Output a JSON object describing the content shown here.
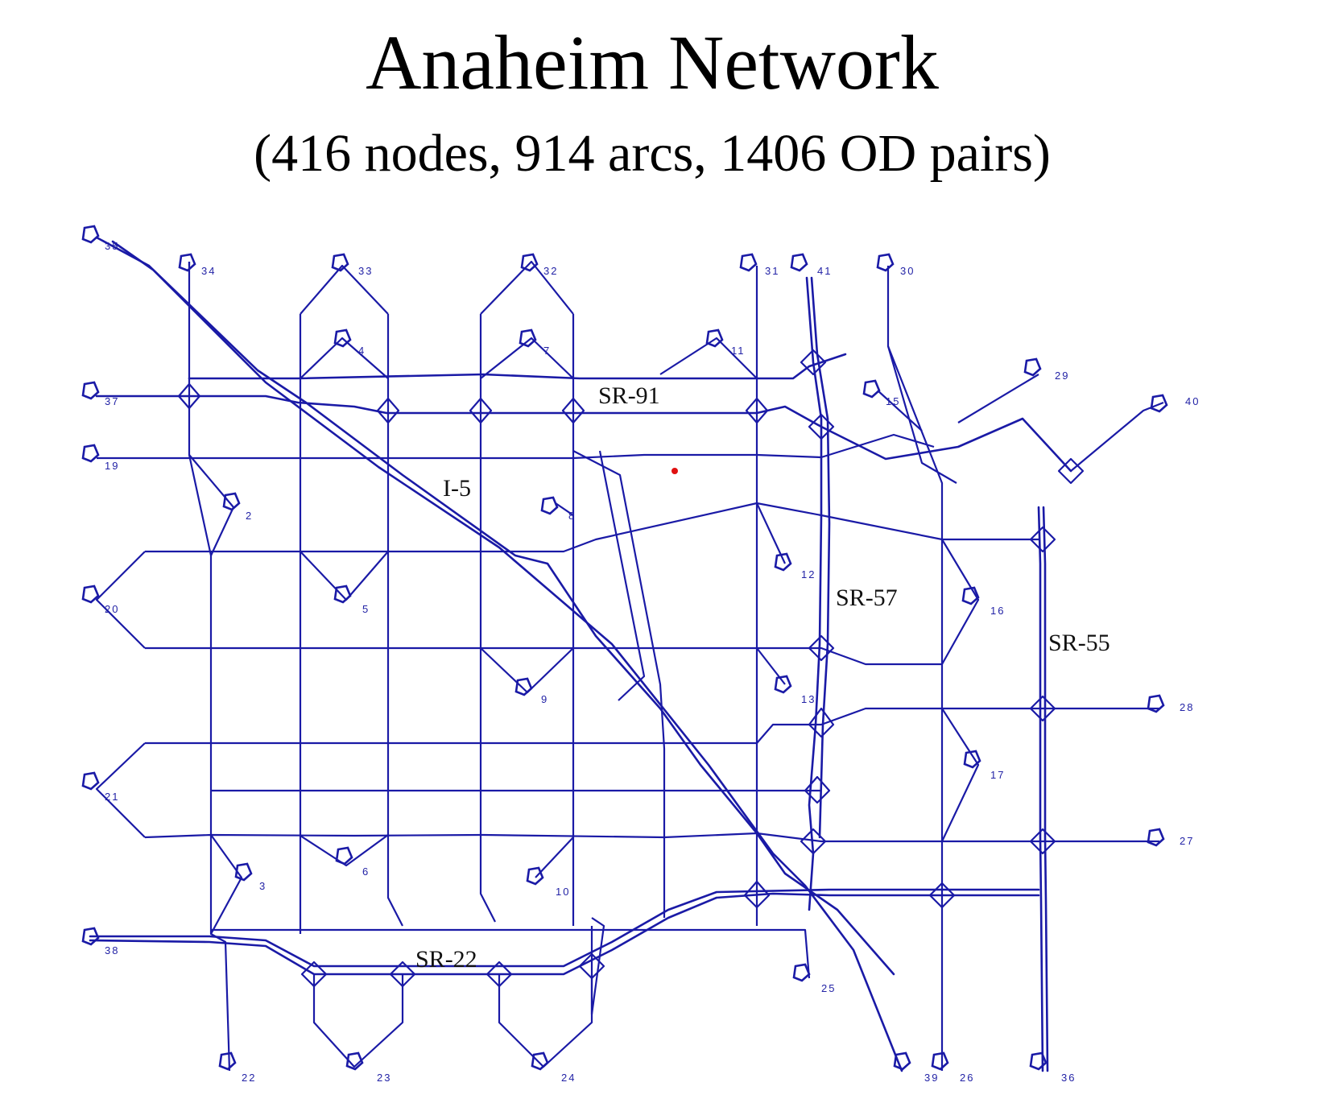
{
  "title": "Anaheim Network",
  "subtitle": "(416 nodes, 914 arcs, 1406 OD pairs)",
  "colors": {
    "network": "#1a1aa6",
    "label": "#2323a6",
    "marker": "#e01010"
  },
  "highways": {
    "sr91": "SR-91",
    "i5": "I-5",
    "sr57": "SR-57",
    "sr55": "SR-55",
    "sr22": "SR-22"
  },
  "zones": [
    "2",
    "3",
    "4",
    "5",
    "6",
    "7",
    "8",
    "9",
    "10",
    "11",
    "12",
    "13",
    "15",
    "16",
    "17",
    "19",
    "20",
    "21",
    "22",
    "23",
    "24",
    "25",
    "26",
    "27",
    "28",
    "29",
    "30",
    "31",
    "32",
    "33",
    "34",
    "35",
    "36",
    "37",
    "38",
    "39",
    "40",
    "41"
  ]
}
